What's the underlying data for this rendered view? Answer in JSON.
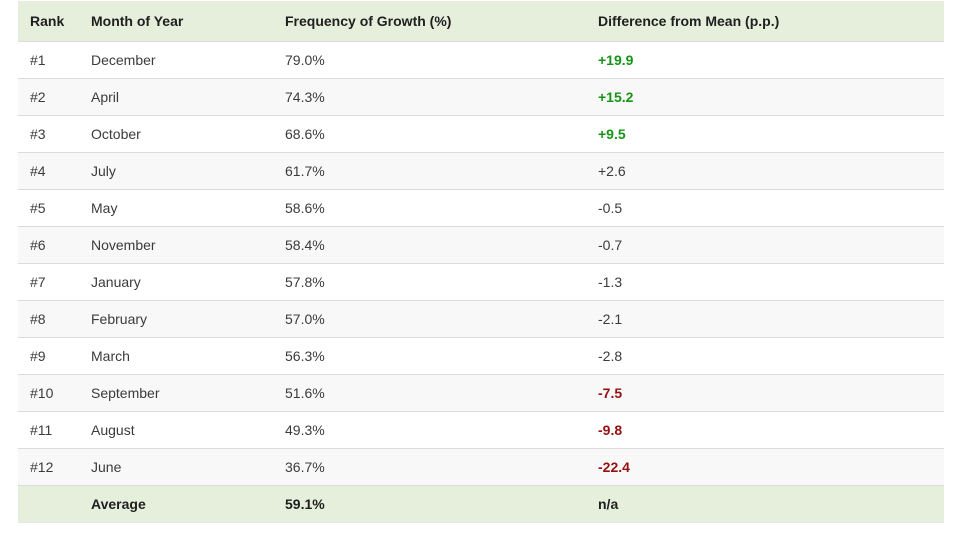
{
  "colors": {
    "header-bg": "#e5efdc",
    "stripe-bg": "#f8f8f8",
    "row-border": "#dcdcdc",
    "footer-border": "#e6e6e6",
    "header-text": "#1f1f1f",
    "body-text": "#3b3b3b",
    "positive": "#169416",
    "negative": "#951111"
  },
  "table": {
    "columns": [
      "Rank",
      "Month of Year",
      "Frequency of Growth (%)",
      "Difference from Mean (p.p.)"
    ],
    "rows": [
      {
        "rank": "#1",
        "month": "December",
        "frequency": "79.0%",
        "difference": "+19.9",
        "tone": "positive"
      },
      {
        "rank": "#2",
        "month": "April",
        "frequency": "74.3%",
        "difference": "+15.2",
        "tone": "positive"
      },
      {
        "rank": "#3",
        "month": "October",
        "frequency": "68.6%",
        "difference": "+9.5",
        "tone": "positive"
      },
      {
        "rank": "#4",
        "month": "July",
        "frequency": "61.7%",
        "difference": "+2.6",
        "tone": "neutral"
      },
      {
        "rank": "#5",
        "month": "May",
        "frequency": "58.6%",
        "difference": "-0.5",
        "tone": "neutral"
      },
      {
        "rank": "#6",
        "month": "November",
        "frequency": "58.4%",
        "difference": "-0.7",
        "tone": "neutral"
      },
      {
        "rank": "#7",
        "month": "January",
        "frequency": "57.8%",
        "difference": "-1.3",
        "tone": "neutral"
      },
      {
        "rank": "#8",
        "month": "February",
        "frequency": "57.0%",
        "difference": "-2.1",
        "tone": "neutral"
      },
      {
        "rank": "#9",
        "month": "March",
        "frequency": "56.3%",
        "difference": "-2.8",
        "tone": "neutral"
      },
      {
        "rank": "#10",
        "month": "September",
        "frequency": "51.6%",
        "difference": "-7.5",
        "tone": "negative"
      },
      {
        "rank": "#11",
        "month": "August",
        "frequency": "49.3%",
        "difference": "-9.8",
        "tone": "negative"
      },
      {
        "rank": "#12",
        "month": "June",
        "frequency": "36.7%",
        "difference": "-22.4",
        "tone": "negative"
      }
    ],
    "footer": {
      "rank": "",
      "month": "Average",
      "frequency": "59.1%",
      "difference": "n/a"
    }
  }
}
